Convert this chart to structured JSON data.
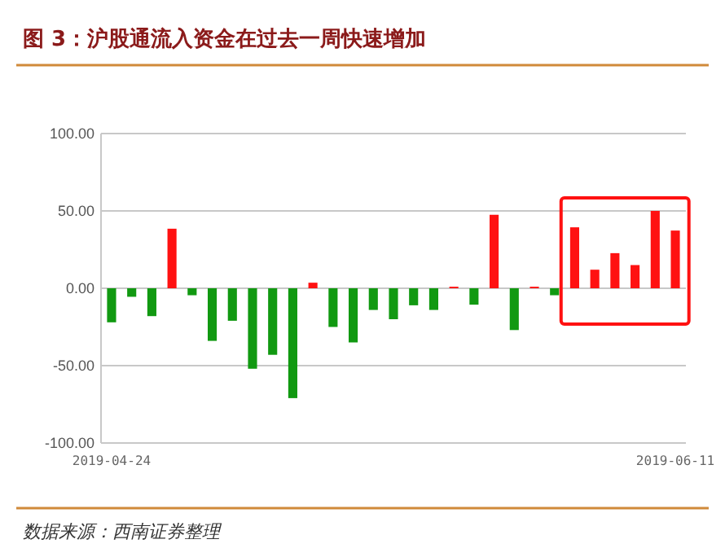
{
  "chart_data": {
    "type": "bar",
    "title": "图 3：沪股通流入资金在过去一周快速增加",
    "categories": [
      "2019-04-24",
      null,
      null,
      null,
      null,
      null,
      null,
      null,
      null,
      null,
      null,
      null,
      null,
      null,
      null,
      null,
      null,
      null,
      null,
      null,
      null,
      null,
      null,
      null,
      null,
      null,
      null,
      null,
      "2019-06-11"
    ],
    "values": [
      -22,
      -5.5,
      -18,
      38.5,
      -4.5,
      -34,
      -21,
      -52,
      -43,
      -71,
      3.6,
      -25,
      -35,
      -14,
      -20,
      -11,
      -14,
      1,
      -10.6,
      47.5,
      -27,
      1,
      -4.5,
      39.4,
      12,
      22.7,
      15,
      50,
      37.3
    ],
    "colors": [
      "#119911",
      "#119911",
      "#119911",
      "#ff1111",
      "#119911",
      "#119911",
      "#119911",
      "#119911",
      "#119911",
      "#119911",
      "#ff1111",
      "#119911",
      "#119911",
      "#119911",
      "#119911",
      "#119911",
      "#119911",
      "#ff1111",
      "#119911",
      "#ff1111",
      "#119911",
      "#ff1111",
      "#119911",
      "#ff1111",
      "#ff1111",
      "#ff1111",
      "#ff1111",
      "#ff1111",
      "#ff1111"
    ],
    "ylim": [
      -100,
      100
    ],
    "yticks": [
      {
        "value": 100,
        "label": "100.00"
      },
      {
        "value": 50,
        "label": "50.00"
      },
      {
        "value": 0,
        "label": "0.00"
      },
      {
        "value": -50,
        "label": "-50.00"
      },
      {
        "value": -100,
        "label": "-100.00"
      }
    ],
    "grid": "y",
    "annotations": [
      "数据来源：西南证券整理"
    ]
  }
}
